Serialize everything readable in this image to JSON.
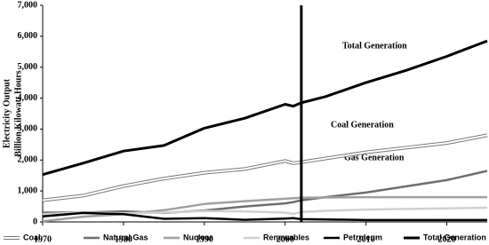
{
  "chart_data": {
    "type": "line",
    "ylabel": [
      "Electricity Output",
      "Billion Kilowatt Hours"
    ],
    "x": [
      1970,
      1975,
      1980,
      1985,
      1990,
      1995,
      2000,
      2001,
      2002,
      2005,
      2010,
      2015,
      2020,
      2025
    ],
    "xlim": [
      1970,
      2025
    ],
    "xticks": [
      1970,
      1980,
      1990,
      2000,
      2010,
      2020
    ],
    "ylim": [
      0,
      7000
    ],
    "yticks": [
      0,
      {
        "value": 1000,
        "label": "1,000"
      },
      {
        "value": 2000,
        "label": "2,000"
      },
      {
        "value": 3000,
        "label": "3,000"
      },
      {
        "value": 4000,
        "label": "4,000"
      },
      {
        "value": 5000,
        "label": "5,000"
      },
      {
        "value": 6000,
        "label": "6,000"
      },
      {
        "value": 7000,
        "label": "7,000"
      }
    ],
    "grid": false,
    "divider_x": 2002,
    "annotations": [
      "Total Generation",
      "Coal Generation",
      "Gas Generation"
    ],
    "legend": "bottom",
    "series": [
      {
        "name": "Coal",
        "color": "#777777",
        "style": "double",
        "values": [
          700,
          850,
          1160,
          1400,
          1590,
          1710,
          1970,
          1900,
          1930,
          2050,
          2250,
          2400,
          2550,
          2800
        ]
      },
      {
        "name": "Natural Gas",
        "color": "#6e6e6e",
        "style": "solid",
        "values": [
          300,
          300,
          340,
          290,
          370,
          500,
          600,
          640,
          700,
          800,
          950,
          1150,
          1350,
          1650
        ]
      },
      {
        "name": "Nuclear",
        "color": "#a0a0a0",
        "style": "solid",
        "values": [
          20,
          170,
          250,
          380,
          580,
          670,
          750,
          770,
          780,
          790,
          800,
          800,
          800,
          800
        ]
      },
      {
        "name": "Renewables",
        "color": "#d0d0d0",
        "style": "solid",
        "values": [
          250,
          300,
          280,
          300,
          350,
          340,
          300,
          260,
          320,
          360,
          400,
          420,
          440,
          460
        ]
      },
      {
        "name": "Petroleum",
        "color": "#000000",
        "style": "solid",
        "values": [
          180,
          290,
          250,
          100,
          120,
          70,
          110,
          120,
          90,
          80,
          60,
          60,
          60,
          60
        ]
      },
      {
        "name": "Total Generation",
        "color": "#000000",
        "style": "thick",
        "values": [
          1530,
          1900,
          2290,
          2470,
          3030,
          3350,
          3800,
          3740,
          3850,
          4050,
          4500,
          4900,
          5350,
          5850
        ]
      }
    ]
  }
}
